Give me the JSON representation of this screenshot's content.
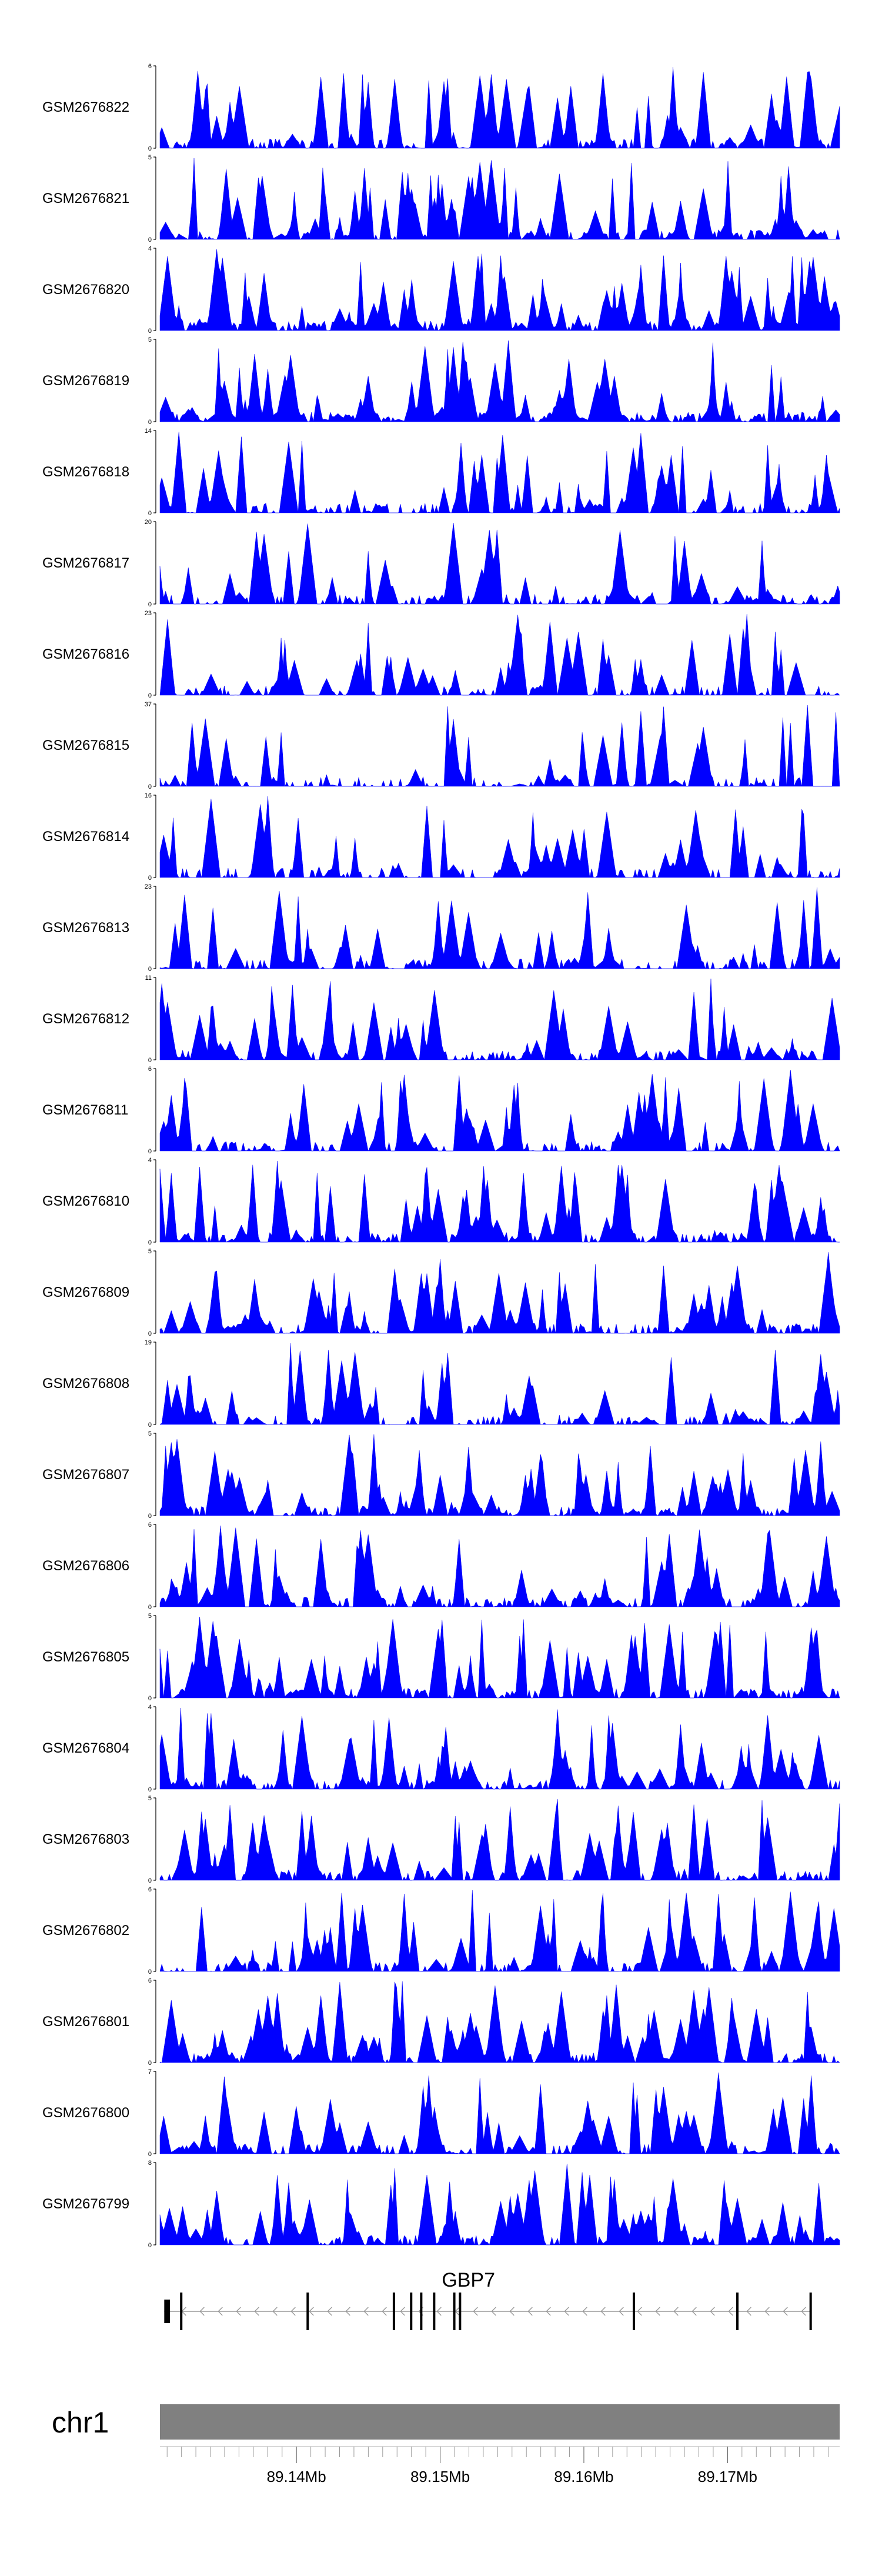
{
  "colors": {
    "coverage": "#0000ff",
    "axis": "#000000",
    "chrom_bar": "#808080",
    "gene": "#000000",
    "intron": "#9a9a9a"
  },
  "chart_data": {
    "type": "area",
    "description_of_marks": "coverage tracks",
    "xlim": [
      89130500,
      89177800
    ],
    "tracks": [
      {
        "name": "GSM2676822",
        "ymax": "6",
        "ymin": "0",
        "max": 6,
        "seed": 22,
        "density": 0.75
      },
      {
        "name": "GSM2676821",
        "ymax": "5",
        "ymin": "0",
        "max": 5,
        "seed": 21,
        "density": 0.8
      },
      {
        "name": "GSM2676820",
        "ymax": "4",
        "ymin": "0",
        "max": 4,
        "seed": 20,
        "density": 1.0
      },
      {
        "name": "GSM2676819",
        "ymax": "5",
        "ymin": "0",
        "max": 5,
        "seed": 19,
        "density": 0.95
      },
      {
        "name": "GSM2676818",
        "ymax": "14",
        "ymin": "0",
        "max": 14,
        "seed": 18,
        "density": 0.55
      },
      {
        "name": "GSM2676817",
        "ymax": "20",
        "ymin": "0",
        "max": 20,
        "seed": 17,
        "density": 0.45
      },
      {
        "name": "GSM2676816",
        "ymax": "23",
        "ymin": "0",
        "max": 23,
        "seed": 16,
        "density": 0.55
      },
      {
        "name": "GSM2676815",
        "ymax": "37",
        "ymin": "0",
        "max": 37,
        "seed": 15,
        "density": 0.4
      },
      {
        "name": "GSM2676814",
        "ymax": "16",
        "ymin": "0",
        "max": 16,
        "seed": 14,
        "density": 0.55
      },
      {
        "name": "GSM2676813",
        "ymax": "23",
        "ymin": "0",
        "max": 23,
        "seed": 13,
        "density": 0.5
      },
      {
        "name": "GSM2676812",
        "ymax": "11",
        "ymin": "0",
        "max": 11,
        "seed": 12,
        "density": 0.7
      },
      {
        "name": "GSM2676811",
        "ymax": "6",
        "ymin": "0",
        "max": 6,
        "seed": 11,
        "density": 0.55
      },
      {
        "name": "GSM2676810",
        "ymax": "4",
        "ymin": "0",
        "max": 4,
        "seed": 10,
        "density": 0.9
      },
      {
        "name": "GSM2676809",
        "ymax": "5",
        "ymin": "0",
        "max": 5,
        "seed": 9,
        "density": 0.75
      },
      {
        "name": "GSM2676808",
        "ymax": "19",
        "ymin": "0",
        "max": 19,
        "seed": 8,
        "density": 0.45
      },
      {
        "name": "GSM2676807",
        "ymax": "5",
        "ymin": "0",
        "max": 5,
        "seed": 7,
        "density": 0.9
      },
      {
        "name": "GSM2676806",
        "ymax": "6",
        "ymin": "0",
        "max": 6,
        "seed": 6,
        "density": 0.7
      },
      {
        "name": "GSM2676805",
        "ymax": "5",
        "ymin": "0",
        "max": 5,
        "seed": 5,
        "density": 0.95
      },
      {
        "name": "GSM2676804",
        "ymax": "4",
        "ymin": "0",
        "max": 4,
        "seed": 4,
        "density": 0.8
      },
      {
        "name": "GSM2676803",
        "ymax": "5",
        "ymin": "0",
        "max": 5,
        "seed": 3,
        "density": 0.75
      },
      {
        "name": "GSM2676802",
        "ymax": "6",
        "ymin": "0",
        "max": 6,
        "seed": 2,
        "density": 0.7
      },
      {
        "name": "GSM2676801",
        "ymax": "6",
        "ymin": "0",
        "max": 6,
        "seed": 1,
        "density": 0.85
      },
      {
        "name": "GSM2676800",
        "ymax": "7",
        "ymin": "0",
        "max": 7,
        "seed": 30,
        "density": 0.75
      },
      {
        "name": "GSM2676799",
        "ymax": "8",
        "ymin": "0",
        "max": 8,
        "seed": 29,
        "density": 0.75
      }
    ],
    "gene": {
      "name": "GBP7",
      "strand": "-",
      "start": 89130800,
      "end": 89175800,
      "exons": [
        [
          89130800,
          89131200
        ],
        [
          89131900,
          89132000
        ],
        [
          89140700,
          89140800
        ],
        [
          89146700,
          89146800
        ],
        [
          89147900,
          89148000
        ],
        [
          89148600,
          89148700
        ],
        [
          89149500,
          89149600
        ],
        [
          89150900,
          89151000
        ],
        [
          89151300,
          89151400
        ],
        [
          89163400,
          89163500
        ],
        [
          89170600,
          89170700
        ],
        [
          89175700,
          89175800
        ]
      ]
    },
    "chromosome": "chr1",
    "x_ticks": [
      "89.14Mb",
      "89.15Mb",
      "89.16Mb",
      "89.17Mb"
    ],
    "x_tick_values": [
      89140000,
      89150000,
      89160000,
      89170000
    ],
    "minor_tick_step": 1000
  }
}
